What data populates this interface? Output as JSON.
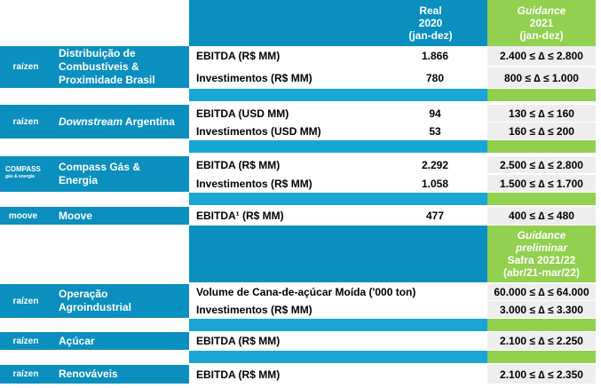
{
  "header": {
    "real": [
      "Real",
      "2020",
      "(jan-dez)"
    ],
    "guidance": [
      "Guidance",
      "2021",
      "(jan-dez)"
    ],
    "guidance_safra": [
      "Guidance",
      "preliminar",
      "Safra 2021/22",
      "(abr/21-mar/22)"
    ]
  },
  "segments": [
    {
      "logo": "raízen",
      "name": "Distribuição de Combustíveis & Proximidade Brasil",
      "rows": [
        {
          "metric": "EBITDA (R$ MM)",
          "real": "1.866",
          "guidance": "2.400 ≤ ∆ ≤ 2.800"
        },
        {
          "metric": "Investimentos (R$ MM)",
          "real": "780",
          "guidance": "800 ≤ ∆ ≤ 1.000"
        }
      ]
    },
    {
      "logo": "raízen",
      "name_italic": "Downstream",
      "name_rest": " Argentina",
      "rows": [
        {
          "metric": "EBITDA (USD MM)",
          "real": "94",
          "guidance": "130 ≤ ∆ ≤ 160"
        },
        {
          "metric": "Investimentos (USD MM)",
          "real": "53",
          "guidance": "160 ≤ ∆ ≤ 200"
        }
      ]
    },
    {
      "logo": "COMPASS",
      "logo_sub": "gás & energia",
      "name": "Compass Gás & Energia",
      "rows": [
        {
          "metric": "EBITDA (R$ MM)",
          "real": "2.292",
          "guidance": "2.500  ≤ ∆ ≤ 2.800"
        },
        {
          "metric": "Investimentos (R$ MM)",
          "real": "1.058",
          "guidance": "1.500 ≤ ∆ ≤ 1.700"
        }
      ]
    },
    {
      "logo": "moove",
      "name": "Moove",
      "rows": [
        {
          "metric": "EBITDA¹ (R$ MM)",
          "real": "477",
          "guidance": "400 ≤ ∆ ≤ 480"
        }
      ]
    },
    {
      "logo": "raízen",
      "name": "Operação Agroindustrial",
      "rows": [
        {
          "metric": "Volume de Cana-de-açúcar Moída ('000 ton)",
          "real": "",
          "guidance": "60.000 ≤ ∆ ≤ 64.000"
        },
        {
          "metric": "Investimentos (R$ MM)",
          "real": "",
          "guidance": "3.000 ≤ ∆ ≤ 3.300"
        }
      ]
    },
    {
      "logo": "raízen",
      "name": "Açúcar",
      "rows": [
        {
          "metric": "EBITDA (R$ MM)",
          "real": "",
          "guidance": "2.100 ≤ ∆ ≤ 2.250"
        }
      ]
    },
    {
      "logo": "raízen",
      "name": "Renováveis",
      "rows": [
        {
          "metric": "EBITDA (R$ MM)",
          "real": "",
          "guidance": "2.100 ≤ ∆ ≤ 2.350"
        }
      ]
    }
  ],
  "colors": {
    "blue": "#0b8fbf",
    "green": "#92d050",
    "row_gray": "#eeeeee"
  }
}
